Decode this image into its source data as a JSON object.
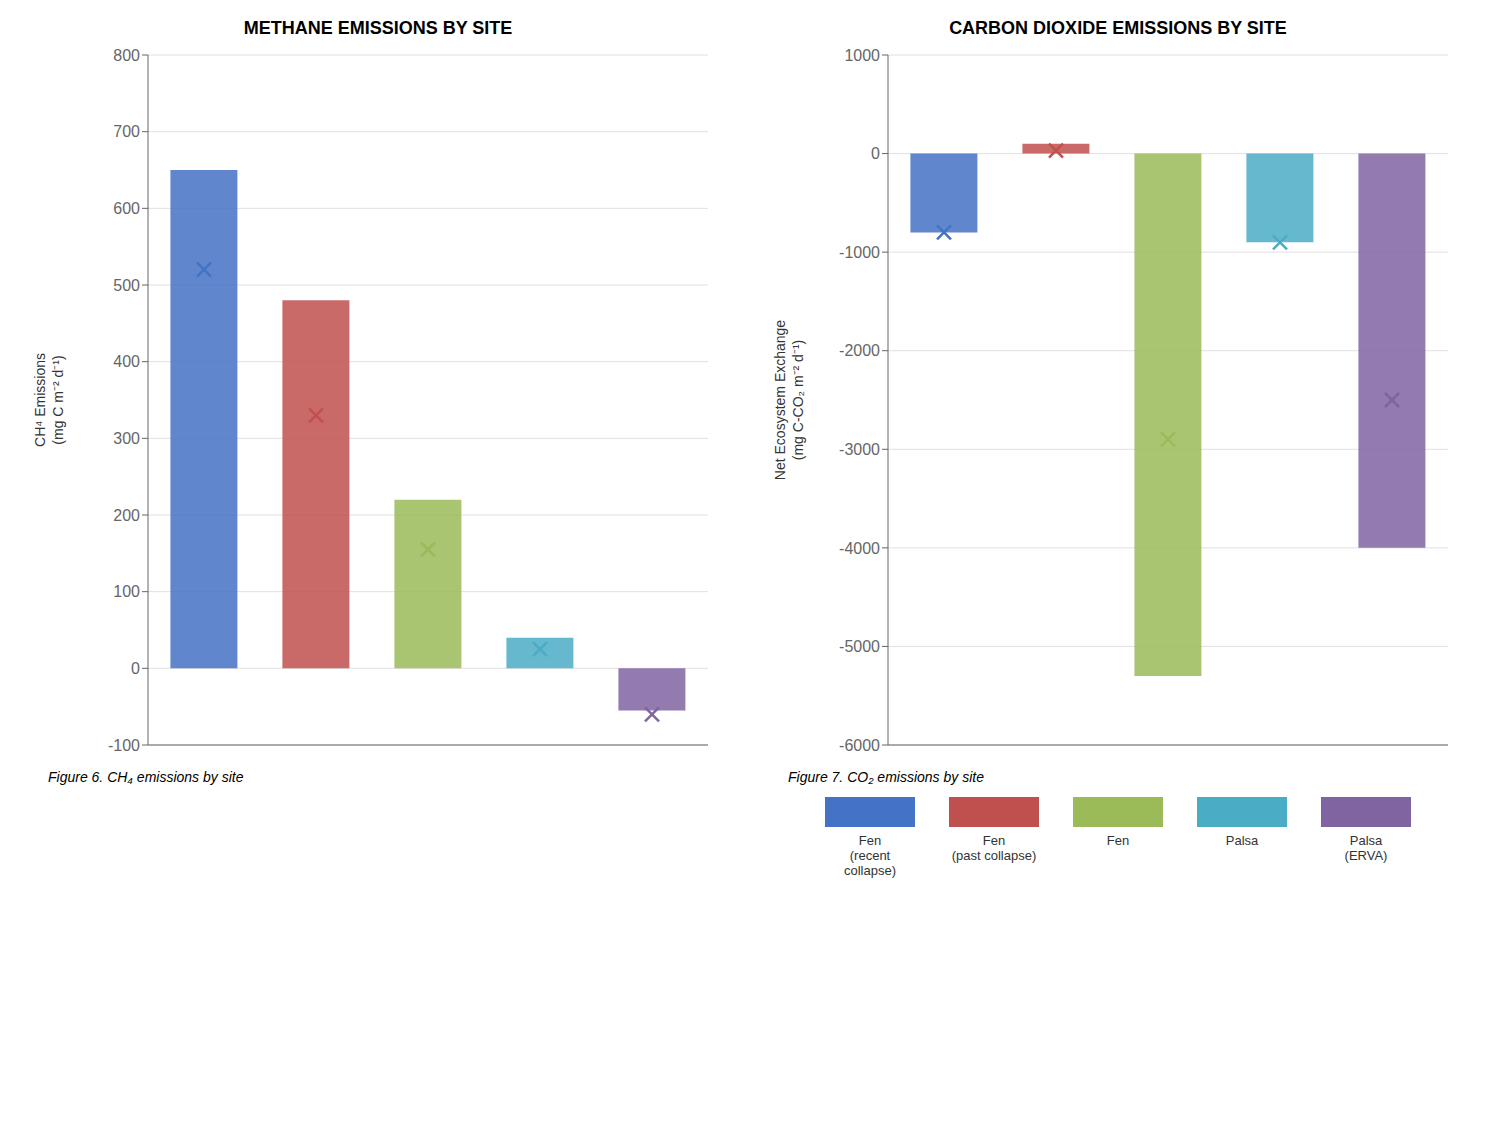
{
  "chart_data": [
    {
      "type": "bar",
      "title": "METHANE EMISSIONS BY SITE",
      "ylabel": "CH⁴ Emissions\n(mg C m⁻² d⁻¹)",
      "categories": [
        "Fen\n(recent\ncollapse)",
        "Fen\n(past collapse)",
        "Fen",
        "Palsa",
        "Palsa\n(ERVA)"
      ],
      "values": [
        650,
        480,
        220,
        40,
        -55
      ],
      "means": [
        520,
        330,
        155,
        25,
        -60
      ],
      "colors": [
        "#4472c4",
        "#c0504d",
        "#9bbb59",
        "#4bacc6",
        "#8064a2"
      ],
      "marker": "x",
      "ylim": [
        -100,
        800
      ],
      "yticks": [
        -100,
        0,
        100,
        200,
        300,
        400,
        500,
        600,
        700,
        800
      ],
      "grid": true,
      "tick_labels": "y",
      "annotations": [
        "Figure 6. CH₄ emissions by site"
      ]
    },
    {
      "type": "bar",
      "title": "CARBON DIOXIDE EMISSIONS BY SITE",
      "ylabel": "Net Ecosystem Exchange\n(mg C-CO₂ m⁻² d⁻¹)",
      "categories": [
        "Fen\n(recent\ncollapse)",
        "Fen\n(past collapse)",
        "Fen",
        "Palsa",
        "Palsa\n(ERVA)"
      ],
      "values": [
        -800,
        100,
        -5300,
        -900,
        -4000
      ],
      "means": [
        -800,
        30,
        -2900,
        -900,
        -2500
      ],
      "colors": [
        "#4472c4",
        "#c0504d",
        "#9bbb59",
        "#4bacc6",
        "#8064a2"
      ],
      "marker": "x",
      "ylim": [
        -6000,
        1000
      ],
      "yticks": [
        -6000,
        -5000,
        -4000,
        -3000,
        -2000,
        -1000,
        0,
        1000
      ],
      "grid": true,
      "tick_labels": "y",
      "legend": "bottom",
      "annotations": [
        "Figure 7. CO₂ emissions by site"
      ]
    }
  ]
}
